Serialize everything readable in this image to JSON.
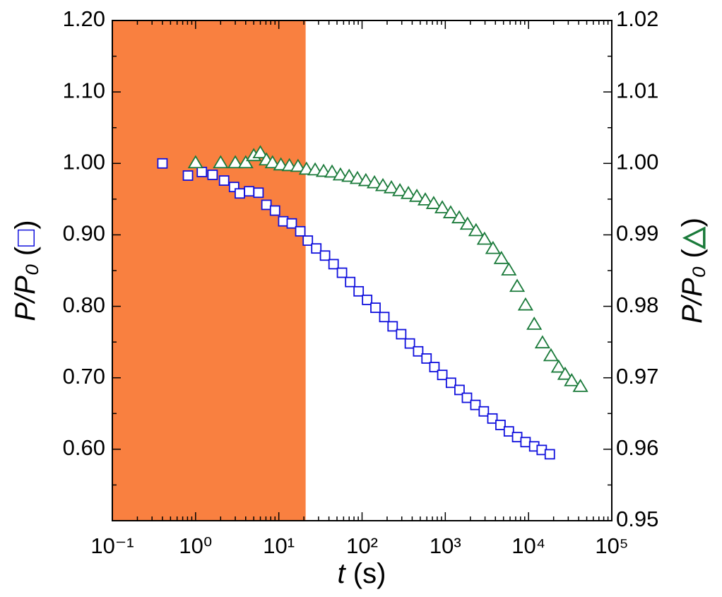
{
  "chart_data": {
    "type": "scatter",
    "xlabel": "t (s)",
    "ylabel": "P/P₀ (□)",
    "y2label": "P/P₀ (△)",
    "xscale": "log",
    "xlim": [
      0.1,
      100000
    ],
    "xticks": [
      {
        "value": 0.1,
        "label": "10⁻¹"
      },
      {
        "value": 1,
        "label": "10⁰"
      },
      {
        "value": 10,
        "label": "10¹"
      },
      {
        "value": 100,
        "label": "10²"
      },
      {
        "value": 1000,
        "label": "10³"
      },
      {
        "value": 10000,
        "label": "10⁴"
      },
      {
        "value": 100000,
        "label": "10⁵"
      }
    ],
    "ylim": [
      0.5,
      1.2
    ],
    "yticks": [
      {
        "value": 0.6,
        "label": "0.60"
      },
      {
        "value": 0.7,
        "label": "0.70"
      },
      {
        "value": 0.8,
        "label": "0.80"
      },
      {
        "value": 0.9,
        "label": "0.90"
      },
      {
        "value": 1.0,
        "label": "1.00"
      },
      {
        "value": 1.1,
        "label": "1.10"
      },
      {
        "value": 1.2,
        "label": "1.20"
      }
    ],
    "y2lim": [
      0.95,
      1.02
    ],
    "y2ticks": [
      {
        "value": 0.95,
        "label": "0.95"
      },
      0.96,
      0.97,
      0.98,
      0.99,
      {
        "value": 1.0,
        "label": "1.00"
      },
      1.01,
      1.02
    ],
    "highlight_xrange": [
      0.1,
      21
    ],
    "highlight_color": "#f98040",
    "series": [
      {
        "marker": "square",
        "color": "#1010dd",
        "x": [
          0.4,
          0.81,
          1.19,
          1.6,
          2.2,
          2.9,
          3.4,
          4.4,
          5.7,
          7.1,
          9.0,
          11.3,
          14.3,
          18.1,
          22.3,
          28.2,
          35.9,
          45.5,
          57.4,
          72,
          91,
          115,
          145,
          185,
          233,
          295,
          375,
          472,
          595,
          740,
          920,
          1170,
          1480,
          1820,
          2300,
          2900,
          3680,
          4600,
          5800,
          7300,
          9200,
          11700,
          14400,
          18000
        ],
        "values": [
          1.0,
          0.983,
          0.988,
          0.984,
          0.976,
          0.967,
          0.958,
          0.961,
          0.959,
          0.942,
          0.934,
          0.919,
          0.916,
          0.905,
          0.892,
          0.881,
          0.871,
          0.859,
          0.847,
          0.834,
          0.821,
          0.809,
          0.798,
          0.785,
          0.772,
          0.761,
          0.748,
          0.737,
          0.727,
          0.715,
          0.704,
          0.693,
          0.683,
          0.672,
          0.662,
          0.653,
          0.643,
          0.634,
          0.625,
          0.617,
          0.61,
          0.604,
          0.599,
          0.593
        ]
      },
      {
        "marker": "triangle",
        "color": "#1a7a3a",
        "axis": "y2",
        "x": [
          1.0,
          2.0,
          3.0,
          4.0,
          5.0,
          6.0,
          7.1,
          8.4,
          10.6,
          13.4,
          17.0,
          21.5,
          27.3,
          34.5,
          43.6,
          55,
          70,
          88,
          111,
          141,
          178,
          225,
          285,
          360,
          455,
          575,
          725,
          920,
          1160,
          1470,
          1850,
          2340,
          2960,
          3740,
          4720,
          5800,
          7300,
          9200,
          11700,
          14700,
          18600,
          23000,
          27500,
          33000,
          42000
        ],
        "values": [
          1.0,
          1.0,
          1.0,
          1.0,
          1.001,
          1.0014,
          1.0004,
          1.0,
          0.9997,
          0.9996,
          0.9995,
          0.9991,
          0.999,
          0.9988,
          0.9987,
          0.9983,
          0.9981,
          0.9978,
          0.9975,
          0.9972,
          0.9968,
          0.9965,
          0.9961,
          0.9957,
          0.9953,
          0.9948,
          0.9943,
          0.9937,
          0.993,
          0.9923,
          0.9914,
          0.9905,
          0.9893,
          0.988,
          0.9866,
          0.985,
          0.9827,
          0.9801,
          0.9774,
          0.9748,
          0.973,
          0.9714,
          0.9704,
          0.9695,
          0.9687
        ]
      }
    ]
  }
}
